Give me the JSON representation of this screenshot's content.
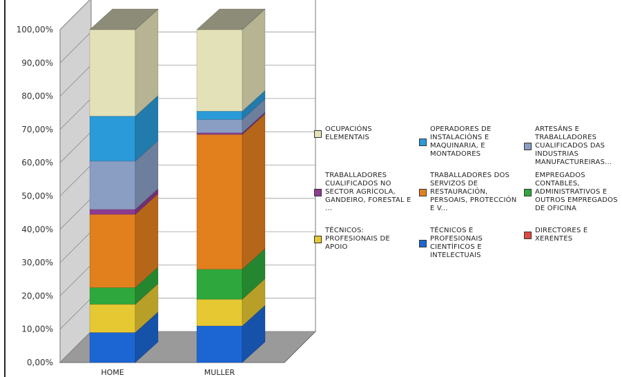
{
  "chart_data": {
    "type": "bar",
    "stacked": true,
    "three_d": true,
    "categories": [
      "HOME",
      "MULLER"
    ],
    "ylim": [
      0,
      100
    ],
    "y_ticks": [
      "0,00%",
      "10,00%",
      "20,00%",
      "30,00%",
      "40,00%",
      "50,00%",
      "60,00%",
      "70,00%",
      "80,00%",
      "90,00%",
      "100,00%"
    ],
    "legend_position": "right",
    "series": [
      {
        "name": "DIRECTORES E XERENTES",
        "color": "#e04a3f",
        "values": [
          0.0,
          0.0
        ]
      },
      {
        "name": "TÉCNICOS E PROFESIONAIS CIENTÍFICOS E INTELECTUAIS",
        "color": "#1c66d4",
        "values": [
          9.0,
          11.0
        ]
      },
      {
        "name": "TÉCNICOS: PROFESIONAIS DE APOIO",
        "color": "#e6c832",
        "values": [
          8.5,
          8.0
        ]
      },
      {
        "name": "EMPREGADOS CONTABLES, ADMINISTRATIVOS E OUTROS EMPREGADOS DE OFICINA",
        "color": "#2ea83c",
        "values": [
          5.0,
          9.0
        ]
      },
      {
        "name": "TRABALLADORES DOS SERVIZOS DE RESTAURACIÓN, PERSOAIS, PROTECCIÓN E V...",
        "color": "#e2801e",
        "values": [
          22.0,
          40.5
        ]
      },
      {
        "name": "TRABALLADORES CUALIFICADOS NO SECTOR AGRÍCOLA, GANDEIRO, FORESTAL E ...",
        "color": "#8e3b92",
        "values": [
          1.5,
          0.5
        ]
      },
      {
        "name": "ARTESÁNS E TRABALLADORES CUALIFICADOS DAS INDUSTRIAS MANUFACTUREIRAS...",
        "color": "#8a9ec4",
        "values": [
          14.5,
          4.0
        ]
      },
      {
        "name": "OPERADORES DE INSTALACIÓNS E MAQUINARIA, E MONTADORES",
        "color": "#2a9ad8",
        "values": [
          13.5,
          2.5
        ]
      },
      {
        "name": "OCUPACIÓNS ELEMENTAIS",
        "color": "#e3e1b7",
        "values": [
          26.0,
          24.5
        ]
      }
    ],
    "legend_order": [
      8,
      7,
      6,
      5,
      4,
      3,
      2,
      1,
      0
    ]
  }
}
